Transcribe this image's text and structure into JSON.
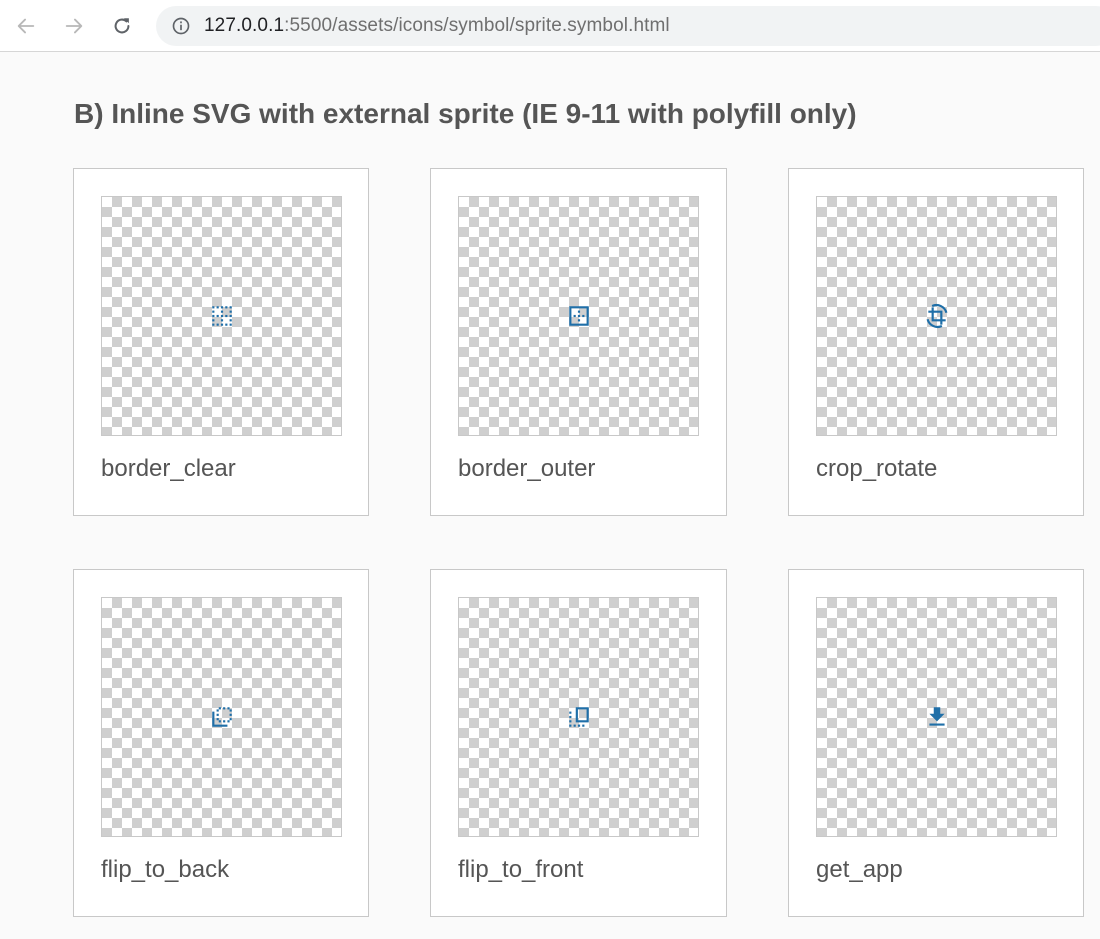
{
  "browser": {
    "url_host": "127.0.0.1",
    "url_rest": ":5500/assets/icons/symbol/sprite.symbol.html",
    "back_icon": "arrow-left-icon",
    "forward_icon": "arrow-right-icon",
    "reload_icon": "reload-icon",
    "info_icon": "info-icon"
  },
  "page": {
    "heading": "B) Inline SVG with external sprite (IE 9-11 with polyfill only)"
  },
  "icons": [
    {
      "name": "border_clear",
      "icon": "border-clear-icon"
    },
    {
      "name": "border_outer",
      "icon": "border-outer-icon"
    },
    {
      "name": "crop_rotate",
      "icon": "crop-rotate-icon"
    },
    {
      "name": "flip_to_back",
      "icon": "flip-to-back-icon"
    },
    {
      "name": "flip_to_front",
      "icon": "flip-to-front-icon"
    },
    {
      "name": "get_app",
      "icon": "get-app-icon"
    }
  ],
  "colors": {
    "icon_blue": "#1f6fa8",
    "heading": "#555555"
  }
}
